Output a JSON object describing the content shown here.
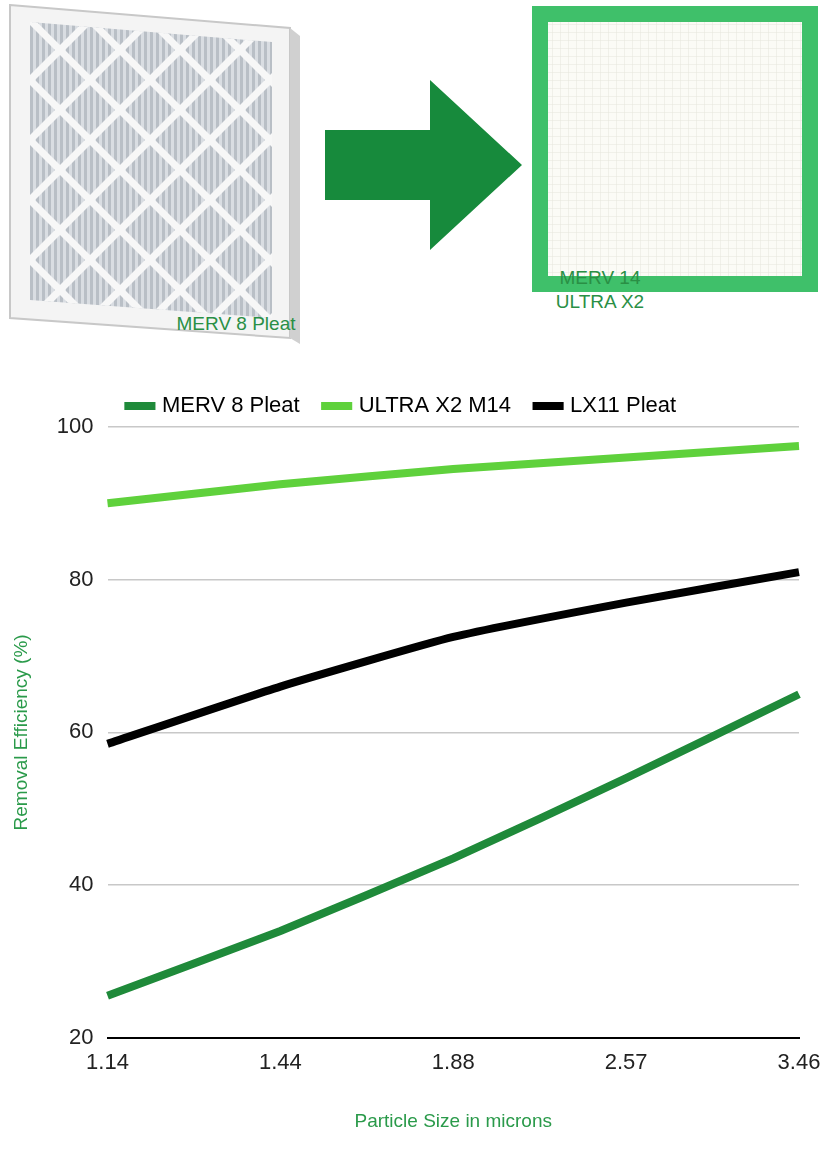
{
  "illustration": {
    "from_label": "MERV 8 Pleat",
    "to_label": [
      "MERV 14",
      "ULTRA X2"
    ]
  },
  "chart_data": {
    "type": "line",
    "x_label": "Particle Size in microns",
    "y_label": "Removal Efficiency (%)",
    "categories": [
      "1.14",
      "1.44",
      "1.88",
      "2.57",
      "3.46"
    ],
    "series": [
      {
        "name": "MERV 8 Pleat",
        "color": "#1f8a3a",
        "values": [
          25.5,
          34,
          43.5,
          54,
          65
        ]
      },
      {
        "name": "ULTRA X2 M14",
        "color": "#5fd13c",
        "values": [
          90,
          92.5,
          94.5,
          96,
          97.5
        ]
      },
      {
        "name": "LX11 Pleat",
        "color": "#000000",
        "values": [
          58.5,
          66,
          72.5,
          77,
          81
        ]
      }
    ],
    "ylim": [
      20,
      100
    ],
    "yticks": [
      20,
      40,
      60,
      80,
      100
    ],
    "grid": true,
    "legend": "top"
  }
}
